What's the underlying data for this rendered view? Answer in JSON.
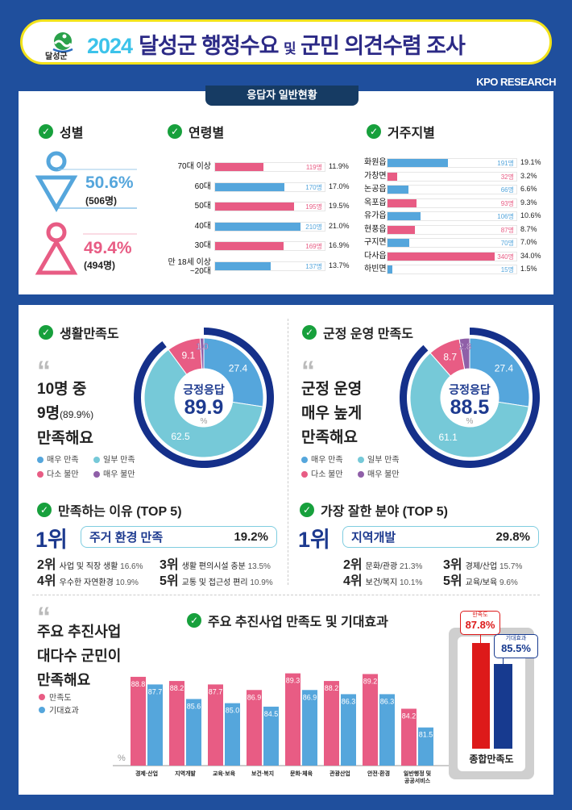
{
  "header": {
    "logo_text": "달성군",
    "year": "2024",
    "title_a": "달성군 행정수요",
    "title_and": "및",
    "title_b": "군민 의견수렴 조사"
  },
  "brand": "KPO RESEARCH",
  "respondents": {
    "tab": "응답자 일반현황",
    "gender": {
      "title": "성별",
      "male": {
        "pct": "50.6%",
        "count": "(506명)"
      },
      "female": {
        "pct": "49.4%",
        "count": "(494명)"
      },
      "colors": {
        "male": "#55a6dc",
        "female": "#e85c84"
      }
    },
    "age": {
      "title": "연령별",
      "rows": [
        {
          "label": "70대 이상",
          "count": "119명",
          "pct": "11.9%",
          "value": 11.9,
          "color": "#e85c84"
        },
        {
          "label": "60대",
          "count": "170명",
          "pct": "17.0%",
          "value": 17.0,
          "color": "#55a6dc"
        },
        {
          "label": "50대",
          "count": "195명",
          "pct": "19.5%",
          "value": 19.5,
          "color": "#e85c84"
        },
        {
          "label": "40대",
          "count": "210명",
          "pct": "21.0%",
          "value": 21.0,
          "color": "#55a6dc"
        },
        {
          "label": "30대",
          "count": "169명",
          "pct": "16.9%",
          "value": 16.9,
          "color": "#e85c84"
        },
        {
          "label": "만 18세 이상 ~20대",
          "count": "137명",
          "pct": "13.7%",
          "value": 13.7,
          "color": "#55a6dc"
        }
      ]
    },
    "region": {
      "title": "거주지별",
      "rows": [
        {
          "label": "화원읍",
          "count": "191명",
          "pct": "19.1%",
          "value": 19.1,
          "color": "#55a6dc"
        },
        {
          "label": "가창면",
          "count": "32명",
          "pct": "3.2%",
          "value": 3.2,
          "color": "#e85c84"
        },
        {
          "label": "논공읍",
          "count": "66명",
          "pct": "6.6%",
          "value": 6.6,
          "color": "#55a6dc"
        },
        {
          "label": "옥포읍",
          "count": "93명",
          "pct": "9.3%",
          "value": 9.3,
          "color": "#e85c84"
        },
        {
          "label": "유가읍",
          "count": "106명",
          "pct": "10.6%",
          "value": 10.6,
          "color": "#55a6dc"
        },
        {
          "label": "현풍읍",
          "count": "87명",
          "pct": "8.7%",
          "value": 8.7,
          "color": "#e85c84"
        },
        {
          "label": "구지면",
          "count": "70명",
          "pct": "7.0%",
          "value": 7.0,
          "color": "#55a6dc"
        },
        {
          "label": "다사읍",
          "count": "340명",
          "pct": "34.0%",
          "value": 34.0,
          "color": "#e85c84"
        },
        {
          "label": "하빈면",
          "count": "15명",
          "pct": "1.5%",
          "value": 1.5,
          "color": "#55a6dc"
        }
      ]
    }
  },
  "life": {
    "title": "생활만족도",
    "quote": "“",
    "lines": [
      "10명 중",
      "9명",
      "(89.9%)",
      "만족해요"
    ],
    "center_label": "긍정응답",
    "center_value": "89.9",
    "center_unit": "%"
  },
  "gov": {
    "title": "군정 운영 만족도",
    "quote": "“",
    "lines": [
      "군정 운영",
      "매우 높게",
      "만족해요"
    ],
    "center_label": "긍정응답",
    "center_value": "88.5",
    "center_unit": "%"
  },
  "legend": [
    {
      "label": "매우 만족",
      "color": "#55a6dc"
    },
    {
      "label": "일부 만족",
      "color": "#76c9d8"
    },
    {
      "label": "다소 불만",
      "color": "#e85c84"
    },
    {
      "label": "매우 불만",
      "color": "#8f5fa8"
    }
  ],
  "reasons": {
    "title": "만족하는 이유 (TOP 5)",
    "first_rank": "1위",
    "first": {
      "name": "주거 환경 만족",
      "value": "19.2%"
    },
    "others": [
      {
        "rank": "2위",
        "name": "사업 및 직장 생활",
        "value": "16.6%"
      },
      {
        "rank": "3위",
        "name": "생활 편의시설 충분",
        "value": "13.5%"
      },
      {
        "rank": "4위",
        "name": "우수한 자연환경",
        "value": "10.9%"
      },
      {
        "rank": "5위",
        "name": "교통 및 접근성 편리",
        "value": "10.9%"
      }
    ]
  },
  "fields": {
    "title": "가장 잘한 분야 (TOP 5)",
    "first_rank": "1위",
    "first": {
      "name": "지역개발",
      "value": "29.8%"
    },
    "others": [
      {
        "rank": "2위",
        "name": "문화/관광",
        "value": "21.3%"
      },
      {
        "rank": "3위",
        "name": "경제/산업",
        "value": "15.7%"
      },
      {
        "rank": "4위",
        "name": "보건/복지",
        "value": "10.1%"
      },
      {
        "rank": "5위",
        "name": "교육/보육",
        "value": "9.6%"
      }
    ]
  },
  "projects": {
    "quote": "“",
    "lines": [
      "주요 추진사업",
      "대다수 군민이",
      "만족해요"
    ],
    "title": "주요 추진사업 만족도 및 기대효과",
    "unit": "%",
    "total": {
      "label": "종합만족도",
      "satisfaction_label": "만족도",
      "satisfaction": "87.8%",
      "expectation_label": "기대효과",
      "expectation": "85.5%"
    }
  },
  "chart_data": [
    {
      "type": "pie",
      "title": "생활만족도",
      "categories": [
        "매우 만족",
        "일부 만족",
        "다소 불만",
        "매우 불만"
      ],
      "values": [
        27.4,
        62.5,
        9.1,
        1.0
      ],
      "labels": [
        "27.4",
        "62.5",
        "9.1",
        "1.0"
      ],
      "colors": [
        "#55a6dc",
        "#76c9d8",
        "#e85c84",
        "#8f5fa8"
      ],
      "positive": 89.9
    },
    {
      "type": "pie",
      "title": "군정 운영 만족도",
      "categories": [
        "매우 만족",
        "일부 만족",
        "다소 불만",
        "매우 불만"
      ],
      "values": [
        27.4,
        61.1,
        8.7,
        2.8
      ],
      "labels": [
        "27.4",
        "61.1",
        "8.7",
        "2.8"
      ],
      "colors": [
        "#55a6dc",
        "#76c9d8",
        "#e85c84",
        "#8f5fa8"
      ],
      "positive": 88.5
    },
    {
      "type": "bar",
      "title": "주요 추진사업 만족도 및 기대효과",
      "ylabel": "%",
      "ylim": [
        76,
        90
      ],
      "grid": false,
      "legend": "left",
      "categories": [
        "경제·산업",
        "지역개발",
        "교육·보육",
        "보건·복지",
        "문화·체육",
        "관광산업",
        "안전·환경",
        "일반행정 및 공공서비스"
      ],
      "series": [
        {
          "name": "만족도",
          "color": "#e85c84",
          "values": [
            88.8,
            88.2,
            87.7,
            86.9,
            89.3,
            88.2,
            89.2,
            84.2
          ],
          "labels": [
            "88.8",
            "88.2",
            "87.7",
            "86.9",
            "89.3",
            "88.2",
            "89.2",
            "84.2"
          ]
        },
        {
          "name": "기대효과",
          "color": "#55a6dc",
          "values": [
            87.7,
            85.6,
            85.0,
            84.5,
            86.9,
            86.3,
            86.3,
            81.5
          ],
          "labels": [
            "87.7",
            "85.6",
            "85.0",
            "84.5",
            "86.9",
            "86.3",
            "86.3",
            "81.5"
          ]
        }
      ]
    },
    {
      "type": "bar",
      "title": "종합만족도",
      "categories": [
        "만족도",
        "기대효과"
      ],
      "values": [
        87.8,
        85.5
      ],
      "colors": [
        "#dd1a1a",
        "#173a8f"
      ]
    }
  ]
}
